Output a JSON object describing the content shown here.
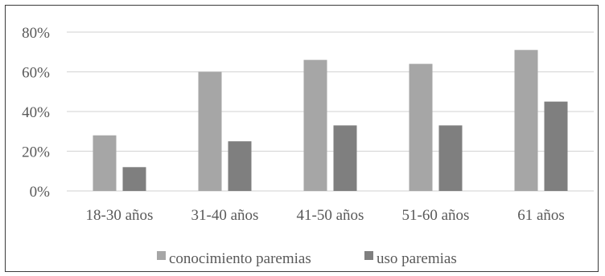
{
  "chart_data": {
    "type": "bar",
    "title": "",
    "xlabel": "",
    "ylabel": "",
    "categories": [
      "18-30 años",
      "31-40 años",
      "41-50 años",
      "51-60 años",
      "61 años"
    ],
    "series": [
      {
        "name": "conocimiento paremias",
        "values": [
          28,
          60,
          66,
          64,
          71
        ],
        "color": "#a6a6a6"
      },
      {
        "name": "uso paremias",
        "values": [
          12,
          25,
          33,
          33,
          45
        ],
        "color": "#7f7f7f"
      }
    ],
    "ylim": [
      0,
      80
    ],
    "yticks": [
      "0%",
      "20%",
      "40%",
      "60%",
      "80%"
    ],
    "ytick_values": [
      0,
      20,
      40,
      60,
      80
    ],
    "grid": true,
    "legend": "bottom-center",
    "gridline_color": "#d9d9d9"
  }
}
